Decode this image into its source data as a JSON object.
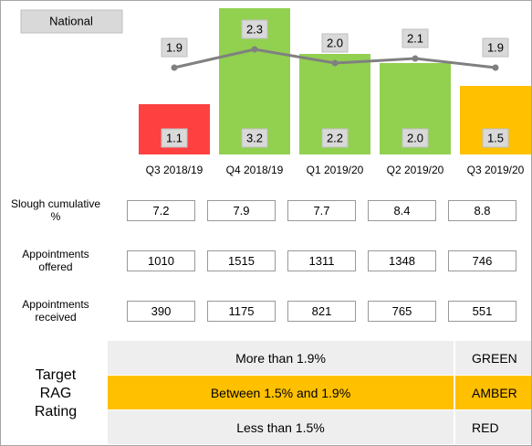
{
  "chart_data": {
    "type": "bar",
    "categories": [
      "Q3 2018/19",
      "Q4 2018/19",
      "Q1 2019/20",
      "Q2 2019/20",
      "Q3 2019/20"
    ],
    "series": [
      {
        "type": "bar",
        "colors": [
          "#ff4040",
          "#92d050",
          "#92d050",
          "#92d050",
          "#ffc000"
        ],
        "values": [
          1.1,
          3.2,
          2.2,
          2.0,
          1.5
        ],
        "value_labels": [
          "1.1",
          "3.2",
          "2.2",
          "2.0",
          "1.5"
        ]
      },
      {
        "type": "line",
        "name": "National",
        "color": "#808080",
        "values": [
          1.9,
          2.3,
          2.0,
          2.1,
          1.9
        ],
        "value_labels": [
          "1.9",
          "2.3",
          "2.0",
          "2.1",
          "1.9"
        ]
      }
    ],
    "ylim": [
      0,
      3.3
    ]
  },
  "table": {
    "rows": [
      {
        "label": "Slough cumulative %",
        "values": [
          "7.2",
          "7.9",
          "7.7",
          "8.4",
          "8.8"
        ]
      },
      {
        "label": "Appointments offered",
        "values": [
          "1010",
          "1515",
          "1311",
          "1348",
          "746"
        ]
      },
      {
        "label": "Appointments received",
        "values": [
          "390",
          "1175",
          "821",
          "765",
          "551"
        ]
      }
    ]
  },
  "rag": {
    "title": "Target RAG Rating",
    "rows": [
      {
        "text": "More than 1.9%",
        "rating": "GREEN",
        "color": "#eeeeee"
      },
      {
        "text": "Between 1.5% and 1.9%",
        "rating": "AMBER",
        "color": "#ffc000"
      },
      {
        "text": "Less than 1.5%",
        "rating": "RED",
        "color": "#eeeeee"
      }
    ]
  }
}
